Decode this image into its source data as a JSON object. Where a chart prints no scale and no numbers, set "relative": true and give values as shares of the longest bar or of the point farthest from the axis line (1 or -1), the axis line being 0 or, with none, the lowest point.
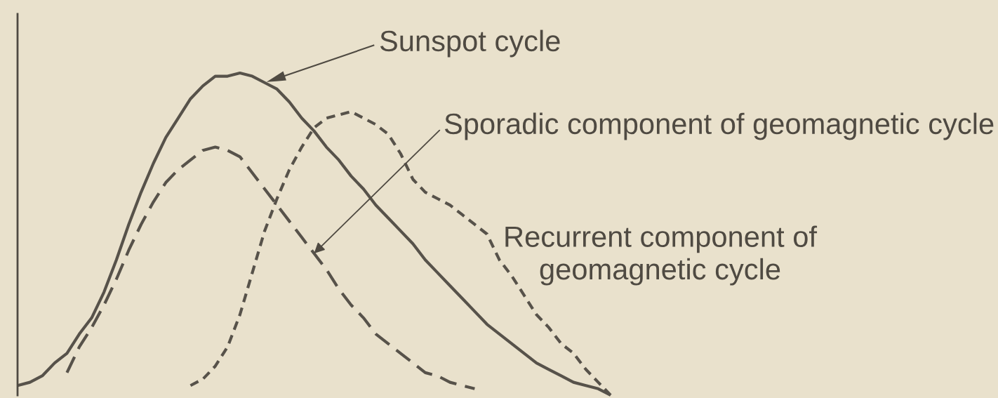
{
  "chart_data": {
    "type": "line",
    "relative": true,
    "categories": [
      null,
      null,
      null,
      null,
      null,
      null,
      null,
      null,
      null,
      null,
      null,
      null,
      null,
      null,
      null,
      null,
      null,
      null,
      null,
      null,
      null,
      null,
      null,
      null,
      null,
      null,
      null,
      null,
      null,
      null,
      null,
      null,
      null,
      null,
      null,
      null,
      null,
      null,
      null,
      null,
      null,
      null,
      null,
      null,
      null,
      null,
      null,
      null,
      null
    ],
    "series": [
      {
        "name": "Sunspot cycle",
        "color": "#57524a",
        "line_style": "solid",
        "values": [
          0.03,
          0.04,
          0.06,
          0.1,
          0.13,
          0.19,
          0.24,
          0.32,
          0.42,
          0.53,
          0.63,
          0.72,
          0.8,
          0.86,
          0.92,
          0.96,
          0.99,
          0.99,
          1,
          0.99,
          0.97,
          0.95,
          0.91,
          0.86,
          0.82,
          0.77,
          0.73,
          0.68,
          0.64,
          0.59,
          0.55,
          0.51,
          0.47,
          0.42,
          0.38,
          0.34,
          0.3,
          0.26,
          0.22,
          0.19,
          0.16,
          0.13,
          0.1,
          0.08,
          0.06,
          0.04,
          0.03,
          0.02,
          0
        ]
      },
      {
        "name": "Sporadic component of geomagnetic cycle",
        "color": "#57524a",
        "line_style": "dashed",
        "values": [
          null,
          null,
          null,
          null,
          0.07,
          0.15,
          0.21,
          0.28,
          0.36,
          0.45,
          0.53,
          0.6,
          0.66,
          0.7,
          0.73,
          0.76,
          0.77,
          0.76,
          0.74,
          0.69,
          0.64,
          0.59,
          0.54,
          0.49,
          0.44,
          0.39,
          0.33,
          0.28,
          0.24,
          0.19,
          0.16,
          0.13,
          0.1,
          0.07,
          0.06,
          0.04,
          0.03,
          0.02,
          null,
          null,
          null,
          null,
          null,
          null,
          null,
          null,
          null,
          null,
          null
        ]
      },
      {
        "name": "Recurrent component of\ngeomagnetic cycle",
        "color": "#57524a",
        "line_style": "dashed",
        "values": [
          null,
          null,
          null,
          null,
          null,
          null,
          null,
          null,
          null,
          null,
          null,
          null,
          null,
          null,
          0.03,
          0.05,
          0.09,
          0.15,
          0.25,
          0.38,
          0.51,
          0.61,
          0.7,
          0.77,
          0.83,
          0.86,
          0.87,
          0.88,
          0.86,
          0.84,
          0.81,
          0.75,
          0.67,
          0.63,
          0.61,
          0.59,
          0.56,
          0.53,
          0.5,
          0.42,
          0.37,
          0.31,
          0.25,
          0.21,
          0.16,
          0.13,
          0.08,
          0.04,
          0
        ]
      }
    ]
  }
}
